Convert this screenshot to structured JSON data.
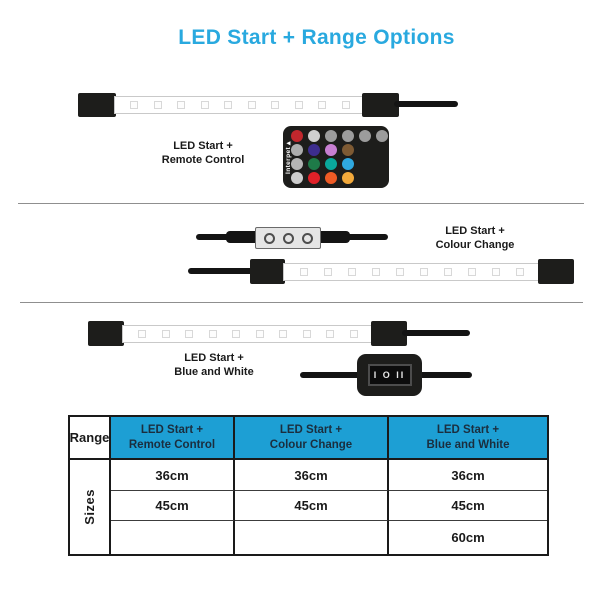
{
  "title": "LED Start + Range Options",
  "colors": {
    "accent_cyan": "#29A9DF",
    "table_header_bg": "#1D9FD4",
    "table_header_text": "#1B2E3E",
    "device_black": "#1d1d1b"
  },
  "product_labels": [
    {
      "line1": "LED Start +",
      "line2": "Remote Control"
    },
    {
      "line1": "LED Start +",
      "line2": "Colour Change"
    },
    {
      "line1": "LED Start +",
      "line2": "Blue and White"
    }
  ],
  "strips": {
    "led_count": 10
  },
  "remote": {
    "brand": "Interpet",
    "logo_arrow": "▶",
    "button_rows": [
      [
        "#C1272D",
        "#CFCFCF",
        "#9C9C9C",
        "#9C9C9C",
        "#9C9C9C",
        "#9C9C9C"
      ],
      [
        "#ADADAD",
        "#3D2D8E",
        "#C77FD2",
        "#7E5A33"
      ],
      [
        "#B5B5B5",
        "#1E7A48",
        "#0AA79B",
        "#2FA8E0"
      ],
      [
        "#CCCCCC",
        "#E02128",
        "#EF5B25",
        "#F2A93B"
      ]
    ]
  },
  "switch": {
    "markings": "I O II"
  },
  "table": {
    "range_label": "Range",
    "sizes_label": "Sizes",
    "columns": [
      {
        "line1": "LED Start +",
        "line2": "Remote Control"
      },
      {
        "line1": "LED Start +",
        "line2": "Colour Change"
      },
      {
        "line1": "LED Start +",
        "line2": "Blue and White"
      }
    ],
    "rows": [
      [
        "36cm",
        "36cm",
        "36cm"
      ],
      [
        "45cm",
        "45cm",
        "45cm"
      ],
      [
        "",
        "",
        "60cm"
      ]
    ]
  }
}
